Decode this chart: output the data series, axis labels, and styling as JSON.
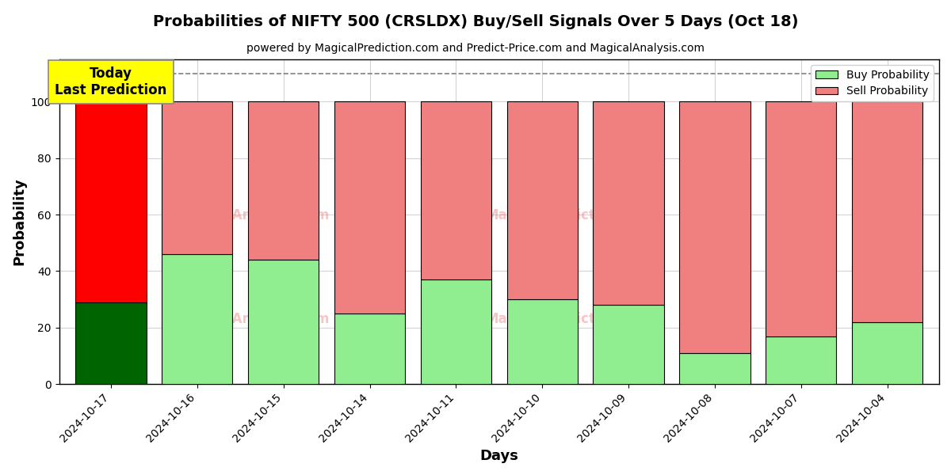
{
  "title": "Probabilities of NIFTY 500 (CRSLDX) Buy/Sell Signals Over 5 Days (Oct 18)",
  "subtitle": "powered by MagicalPrediction.com and Predict-Price.com and MagicalAnalysis.com",
  "xlabel": "Days",
  "ylabel": "Probability",
  "days": [
    "2024-10-17",
    "2024-10-16",
    "2024-10-15",
    "2024-10-14",
    "2024-10-11",
    "2024-10-10",
    "2024-10-09",
    "2024-10-08",
    "2024-10-07",
    "2024-10-04"
  ],
  "buy_probs": [
    29,
    46,
    44,
    25,
    37,
    30,
    28,
    11,
    17,
    22
  ],
  "sell_probs": [
    71,
    54,
    56,
    75,
    63,
    70,
    72,
    89,
    83,
    78
  ],
  "today_buy_color": "#006400",
  "today_sell_color": "#ff0000",
  "normal_buy_color": "#90ee90",
  "normal_sell_color": "#f08080",
  "legend_buy_color": "#90ee90",
  "legend_sell_color": "#f08080",
  "annotation_text": "Today\nLast Prediction",
  "annotation_bg": "#ffff00",
  "dashed_line_y": 110,
  "ylim": [
    0,
    115
  ],
  "yticks": [
    0,
    20,
    40,
    60,
    80,
    100
  ],
  "watermark_color": "#f08080",
  "watermark_alpha": 0.45,
  "bar_edge_color": "#000000",
  "bar_linewidth": 0.8,
  "bar_width": 0.82,
  "bg_color": "#f5f5f5"
}
